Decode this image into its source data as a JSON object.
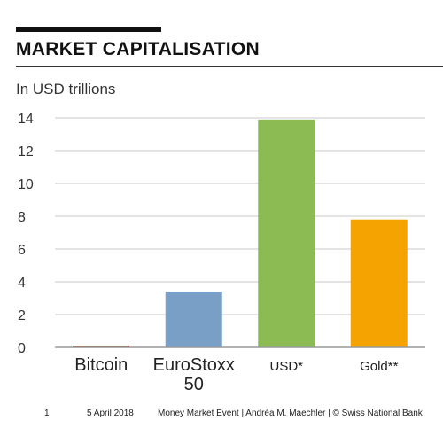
{
  "header": {
    "title": "MARKET CAPITALISATION"
  },
  "chart_data": {
    "type": "bar",
    "title": "MARKET CAPITALISATION",
    "subtitle": "In USD trillions",
    "categories": [
      "Bitcoin",
      "EuroStoxx 50",
      "USD*",
      "Gold**"
    ],
    "category_lines": [
      [
        "Bitcoin"
      ],
      [
        "EuroStoxx",
        "50"
      ],
      [
        "USD*"
      ],
      [
        "Gold**"
      ]
    ],
    "values": [
      0.1,
      3.4,
      13.9,
      7.8
    ],
    "colors": [
      "#9b2d30",
      "#7a9fc6",
      "#8cbb53",
      "#f5a300"
    ],
    "ylim": [
      0,
      14
    ],
    "yticks": [
      0,
      2,
      4,
      6,
      8,
      10,
      12,
      14
    ],
    "grid": true
  },
  "footer": {
    "page_number": "1",
    "date": "5 April 2018",
    "event": "Money Market Event  |  Andréa M. Maechler  |  © Swiss National Bank"
  }
}
